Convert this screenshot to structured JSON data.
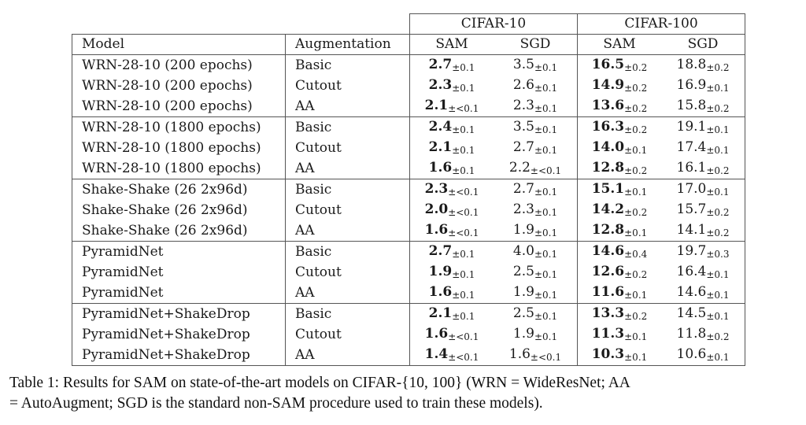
{
  "table": {
    "group_headers": [
      "CIFAR-10",
      "CIFAR-100"
    ],
    "headers": [
      "Model",
      "Augmentation",
      "SAM",
      "SGD",
      "SAM",
      "SGD"
    ],
    "groups": [
      {
        "rows": [
          {
            "model": "WRN-28-10 (200 epochs)",
            "aug": "Basic",
            "c10_sam": "2.7",
            "c10_sam_pm": "±0.1",
            "c10_sgd": "3.5",
            "c10_sgd_pm": "±0.1",
            "c100_sam": "16.5",
            "c100_sam_pm": "±0.2",
            "c100_sgd": "18.8",
            "c100_sgd_pm": "±0.2"
          },
          {
            "model": "WRN-28-10 (200 epochs)",
            "aug": "Cutout",
            "c10_sam": "2.3",
            "c10_sam_pm": "±0.1",
            "c10_sgd": "2.6",
            "c10_sgd_pm": "±0.1",
            "c100_sam": "14.9",
            "c100_sam_pm": "±0.2",
            "c100_sgd": "16.9",
            "c100_sgd_pm": "±0.1"
          },
          {
            "model": "WRN-28-10 (200 epochs)",
            "aug": "AA",
            "c10_sam": "2.1",
            "c10_sam_pm": "±<0.1",
            "c10_sgd": "2.3",
            "c10_sgd_pm": "±0.1",
            "c100_sam": "13.6",
            "c100_sam_pm": "±0.2",
            "c100_sgd": "15.8",
            "c100_sgd_pm": "±0.2"
          }
        ]
      },
      {
        "rows": [
          {
            "model": "WRN-28-10 (1800 epochs)",
            "aug": "Basic",
            "c10_sam": "2.4",
            "c10_sam_pm": "±0.1",
            "c10_sgd": "3.5",
            "c10_sgd_pm": "±0.1",
            "c100_sam": "16.3",
            "c100_sam_pm": "±0.2",
            "c100_sgd": "19.1",
            "c100_sgd_pm": "±0.1"
          },
          {
            "model": "WRN-28-10 (1800 epochs)",
            "aug": "Cutout",
            "c10_sam": "2.1",
            "c10_sam_pm": "±0.1",
            "c10_sgd": "2.7",
            "c10_sgd_pm": "±0.1",
            "c100_sam": "14.0",
            "c100_sam_pm": "±0.1",
            "c100_sgd": "17.4",
            "c100_sgd_pm": "±0.1"
          },
          {
            "model": "WRN-28-10 (1800 epochs)",
            "aug": "AA",
            "c10_sam": "1.6",
            "c10_sam_pm": "±0.1",
            "c10_sgd": "2.2",
            "c10_sgd_pm": "±<0.1",
            "c100_sam": "12.8",
            "c100_sam_pm": "±0.2",
            "c100_sgd": "16.1",
            "c100_sgd_pm": "±0.2"
          }
        ]
      },
      {
        "rows": [
          {
            "model": "Shake-Shake (26 2x96d)",
            "aug": "Basic",
            "c10_sam": "2.3",
            "c10_sam_pm": "±<0.1",
            "c10_sgd": "2.7",
            "c10_sgd_pm": "±0.1",
            "c100_sam": "15.1",
            "c100_sam_pm": "±0.1",
            "c100_sgd": "17.0",
            "c100_sgd_pm": "±0.1"
          },
          {
            "model": "Shake-Shake (26 2x96d)",
            "aug": "Cutout",
            "c10_sam": "2.0",
            "c10_sam_pm": "±<0.1",
            "c10_sgd": "2.3",
            "c10_sgd_pm": "±0.1",
            "c100_sam": "14.2",
            "c100_sam_pm": "±0.2",
            "c100_sgd": "15.7",
            "c100_sgd_pm": "±0.2"
          },
          {
            "model": "Shake-Shake (26 2x96d)",
            "aug": "AA",
            "c10_sam": "1.6",
            "c10_sam_pm": "±<0.1",
            "c10_sgd": "1.9",
            "c10_sgd_pm": "±0.1",
            "c100_sam": "12.8",
            "c100_sam_pm": "±0.1",
            "c100_sgd": "14.1",
            "c100_sgd_pm": "±0.2"
          }
        ]
      },
      {
        "rows": [
          {
            "model": "PyramidNet",
            "aug": "Basic",
            "c10_sam": "2.7",
            "c10_sam_pm": "±0.1",
            "c10_sgd": "4.0",
            "c10_sgd_pm": "±0.1",
            "c100_sam": "14.6",
            "c100_sam_pm": "±0.4",
            "c100_sgd": "19.7",
            "c100_sgd_pm": "±0.3"
          },
          {
            "model": "PyramidNet",
            "aug": "Cutout",
            "c10_sam": "1.9",
            "c10_sam_pm": "±0.1",
            "c10_sgd": "2.5",
            "c10_sgd_pm": "±0.1",
            "c100_sam": "12.6",
            "c100_sam_pm": "±0.2",
            "c100_sgd": "16.4",
            "c100_sgd_pm": "±0.1"
          },
          {
            "model": "PyramidNet",
            "aug": "AA",
            "c10_sam": "1.6",
            "c10_sam_pm": "±0.1",
            "c10_sgd": "1.9",
            "c10_sgd_pm": "±0.1",
            "c100_sam": "11.6",
            "c100_sam_pm": "±0.1",
            "c100_sgd": "14.6",
            "c100_sgd_pm": "±0.1"
          }
        ]
      },
      {
        "rows": [
          {
            "model": "PyramidNet+ShakeDrop",
            "aug": "Basic",
            "c10_sam": "2.1",
            "c10_sam_pm": "±0.1",
            "c10_sgd": "2.5",
            "c10_sgd_pm": "±0.1",
            "c100_sam": "13.3",
            "c100_sam_pm": "±0.2",
            "c100_sgd": "14.5",
            "c100_sgd_pm": "±0.1"
          },
          {
            "model": "PyramidNet+ShakeDrop",
            "aug": "Cutout",
            "c10_sam": "1.6",
            "c10_sam_pm": "±<0.1",
            "c10_sgd": "1.9",
            "c10_sgd_pm": "±0.1",
            "c100_sam": "11.3",
            "c100_sam_pm": "±0.1",
            "c100_sgd": "11.8",
            "c100_sgd_pm": "±0.2"
          },
          {
            "model": "PyramidNet+ShakeDrop",
            "aug": "AA",
            "c10_sam": "1.4",
            "c10_sam_pm": "±<0.1",
            "c10_sgd": "1.6",
            "c10_sgd_pm": "±<0.1",
            "c100_sam": "10.3",
            "c100_sam_pm": "±0.1",
            "c100_sgd": "10.6",
            "c100_sgd_pm": "±0.1"
          }
        ]
      }
    ]
  },
  "caption": {
    "line1": "Table 1: Results for SAM on state-of-the-art models on CIFAR-{10, 100} (WRN = WideResNet; AA",
    "line2": "= AutoAugment; SGD is the standard non-SAM procedure used to train these models)."
  }
}
